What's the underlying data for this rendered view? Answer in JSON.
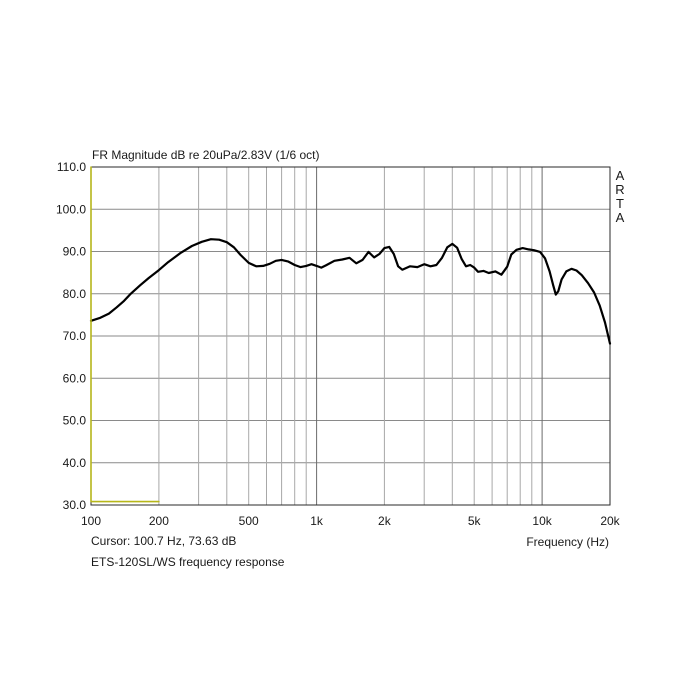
{
  "chart_data": {
    "type": "line",
    "title": "FR Magnitude dB re 20uPa/2.83V (1/6 oct)",
    "xlabel": "Frequency (Hz)",
    "ylabel": "",
    "x_scale": "log",
    "xlim": [
      100,
      20000
    ],
    "ylim": [
      30,
      110
    ],
    "grid": true,
    "x_ticks": [
      {
        "value": 100,
        "label": "100"
      },
      {
        "value": 200,
        "label": "200"
      },
      {
        "value": 500,
        "label": "500"
      },
      {
        "value": 1000,
        "label": "1k"
      },
      {
        "value": 2000,
        "label": "2k"
      },
      {
        "value": 5000,
        "label": "5k"
      },
      {
        "value": 10000,
        "label": "10k"
      },
      {
        "value": 20000,
        "label": "20k"
      }
    ],
    "y_ticks": [
      {
        "value": 110,
        "label": "110.0"
      },
      {
        "value": 100,
        "label": "100.0"
      },
      {
        "value": 90,
        "label": "90.0"
      },
      {
        "value": 80,
        "label": "80.0"
      },
      {
        "value": 70,
        "label": "70.0"
      },
      {
        "value": 60,
        "label": "60.0"
      },
      {
        "value": 50,
        "label": "50.0"
      },
      {
        "value": 40,
        "label": "40.0"
      },
      {
        "value": 30,
        "label": "30.0"
      }
    ],
    "series": [
      {
        "color": "#000000",
        "points": [
          [
            100,
            73.6
          ],
          [
            110,
            74.3
          ],
          [
            120,
            75.3
          ],
          [
            130,
            76.8
          ],
          [
            140,
            78.3
          ],
          [
            150,
            80.0
          ],
          [
            165,
            82.0
          ],
          [
            180,
            83.7
          ],
          [
            200,
            85.6
          ],
          [
            220,
            87.5
          ],
          [
            250,
            89.7
          ],
          [
            280,
            91.3
          ],
          [
            310,
            92.3
          ],
          [
            340,
            92.9
          ],
          [
            370,
            92.8
          ],
          [
            400,
            92.2
          ],
          [
            430,
            91.0
          ],
          [
            460,
            89.2
          ],
          [
            500,
            87.3
          ],
          [
            540,
            86.5
          ],
          [
            580,
            86.6
          ],
          [
            620,
            87.1
          ],
          [
            660,
            87.8
          ],
          [
            700,
            88.0
          ],
          [
            750,
            87.6
          ],
          [
            800,
            86.8
          ],
          [
            850,
            86.3
          ],
          [
            900,
            86.6
          ],
          [
            950,
            87.0
          ],
          [
            1000,
            86.6
          ],
          [
            1050,
            86.2
          ],
          [
            1100,
            86.7
          ],
          [
            1200,
            87.8
          ],
          [
            1300,
            88.1
          ],
          [
            1400,
            88.5
          ],
          [
            1500,
            87.2
          ],
          [
            1600,
            88.0
          ],
          [
            1700,
            89.9
          ],
          [
            1800,
            88.6
          ],
          [
            1900,
            89.4
          ],
          [
            2000,
            90.8
          ],
          [
            2100,
            91.1
          ],
          [
            2200,
            89.4
          ],
          [
            2300,
            86.5
          ],
          [
            2400,
            85.7
          ],
          [
            2600,
            86.5
          ],
          [
            2800,
            86.3
          ],
          [
            3000,
            87.0
          ],
          [
            3200,
            86.5
          ],
          [
            3400,
            86.8
          ],
          [
            3600,
            88.5
          ],
          [
            3800,
            91.0
          ],
          [
            4000,
            91.8
          ],
          [
            4200,
            90.9
          ],
          [
            4400,
            88.2
          ],
          [
            4600,
            86.5
          ],
          [
            4800,
            86.8
          ],
          [
            5000,
            86.2
          ],
          [
            5200,
            85.2
          ],
          [
            5500,
            85.4
          ],
          [
            5800,
            84.9
          ],
          [
            6200,
            85.3
          ],
          [
            6600,
            84.5
          ],
          [
            7000,
            86.4
          ],
          [
            7300,
            89.3
          ],
          [
            7700,
            90.4
          ],
          [
            8200,
            90.8
          ],
          [
            8700,
            90.5
          ],
          [
            9200,
            90.3
          ],
          [
            9800,
            89.9
          ],
          [
            10300,
            88.4
          ],
          [
            10800,
            85.3
          ],
          [
            11200,
            82.0
          ],
          [
            11500,
            79.8
          ],
          [
            11800,
            80.6
          ],
          [
            12200,
            83.4
          ],
          [
            12800,
            85.3
          ],
          [
            13500,
            85.9
          ],
          [
            14200,
            85.5
          ],
          [
            15000,
            84.4
          ],
          [
            16000,
            82.5
          ],
          [
            17000,
            80.3
          ],
          [
            18000,
            77.2
          ],
          [
            19000,
            73.2
          ],
          [
            20000,
            68.2
          ]
        ]
      },
      {
        "color": "#b6b61a",
        "points": [
          [
            100,
            110
          ],
          [
            100,
            30.8
          ],
          [
            200,
            30.8
          ]
        ]
      }
    ]
  },
  "watermark": "ARTA",
  "cursor_text": "Cursor: 100.7 Hz, 73.63 dB",
  "caption": "ETS-120SL/WS frequency response"
}
